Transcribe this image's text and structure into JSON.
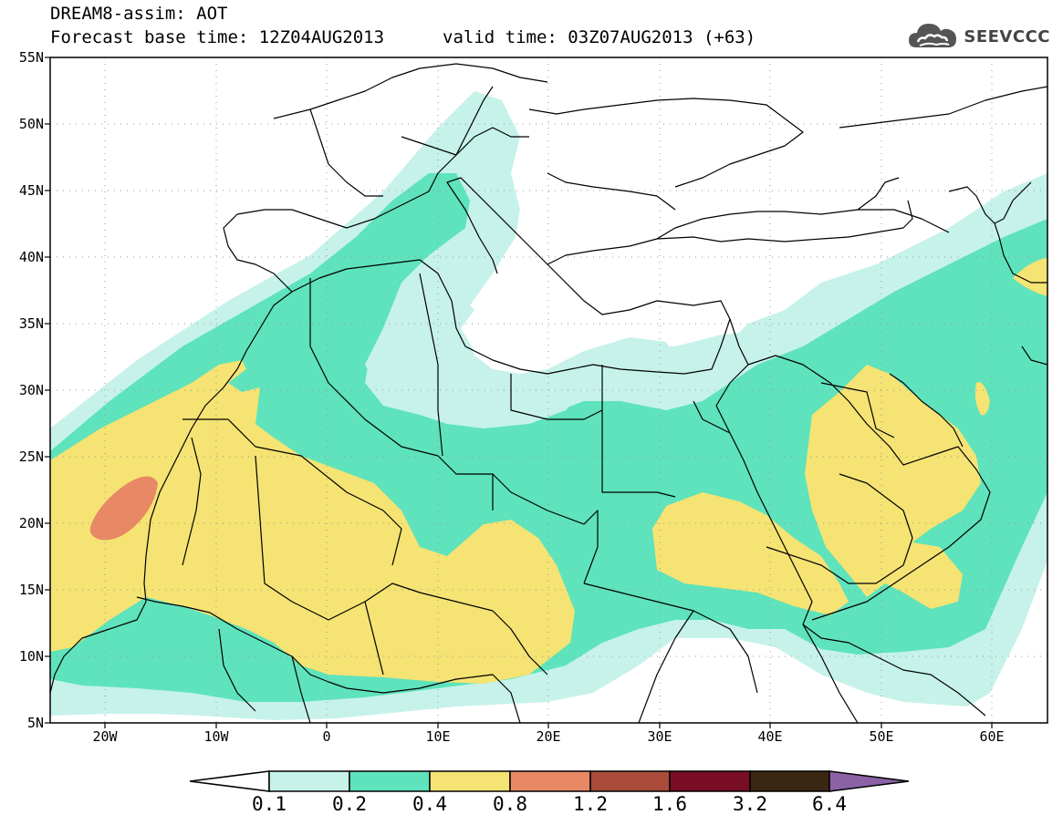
{
  "header": {
    "line1": "DREAM8-assim: AOT",
    "base_time": "Forecast base time: 12Z04AUG2013",
    "valid_time": "valid time: 03Z07AUG2013 (+63)"
  },
  "logo": {
    "icon": "cloud-logo-icon",
    "text": "SEEVCCC"
  },
  "axes": {
    "lat_labels": [
      "55N",
      "50N",
      "45N",
      "40N",
      "35N",
      "30N",
      "25N",
      "20N",
      "15N",
      "10N",
      "5N"
    ],
    "lon_labels": [
      "20W",
      "10W",
      "0",
      "10E",
      "20E",
      "30E",
      "40E",
      "50E",
      "60E"
    ],
    "lat_range": [
      5,
      55
    ],
    "lon_range": [
      -25,
      65
    ]
  },
  "colorbar": {
    "labels": [
      "0.1",
      "0.2",
      "0.4",
      "0.8",
      "1.2",
      "1.6",
      "3.2",
      "6.4"
    ],
    "colors": [
      "#ffffff",
      "#c6f2ea",
      "#5ee3bc",
      "#f5e373",
      "#e88865",
      "#a94a3a",
      "#7a0d26",
      "#3b2614",
      "#8a62a5"
    ],
    "thresholds": [
      0.1,
      0.2,
      0.4,
      0.8,
      1.2,
      1.6,
      3.2,
      6.4
    ]
  }
}
